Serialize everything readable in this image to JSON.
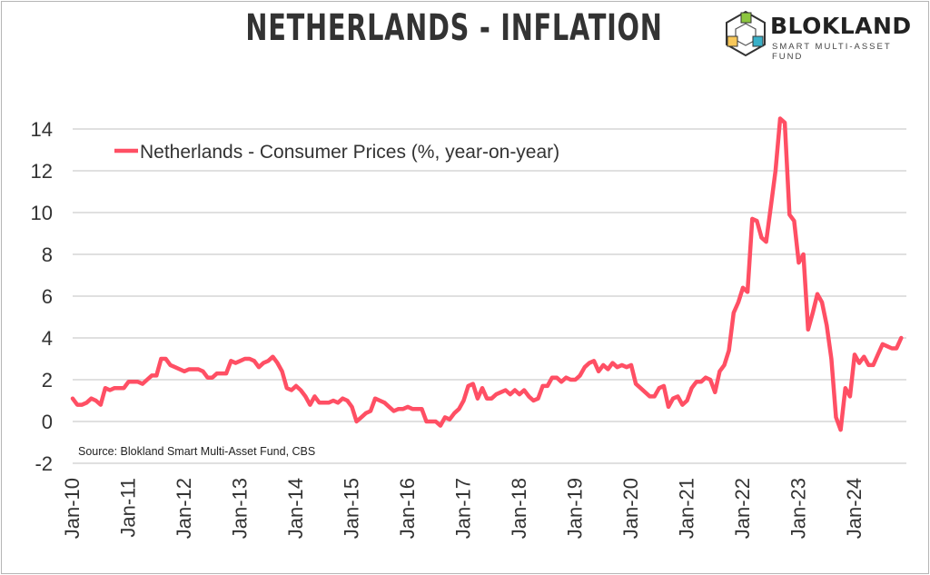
{
  "title": "NETHERLANDS - INFLATION",
  "logo": {
    "name": "BLOKLAND",
    "tagline": "SMART MULTI-ASSET FUND"
  },
  "chart_data": {
    "type": "line",
    "title": "NETHERLANDS - INFLATION",
    "xlabel": "",
    "ylabel": "",
    "ylim": [
      -2,
      14
    ],
    "yticks": [
      -2,
      0,
      2,
      4,
      6,
      8,
      10,
      12,
      14
    ],
    "xticks": [
      "Jan-10",
      "Jan-11",
      "Jan-12",
      "Jan-13",
      "Jan-14",
      "Jan-15",
      "Jan-16",
      "Jan-17",
      "Jan-18",
      "Jan-19",
      "Jan-20",
      "Jan-21",
      "Jan-22",
      "Jan-23",
      "Jan-24"
    ],
    "grid": "horizontal",
    "legend_placement": "top-left",
    "source": "Source: Blokland Smart Multi-Asset Fund, CBS",
    "x_start": "Jan-10",
    "x_frequency": "monthly",
    "series": [
      {
        "name": "Netherlands - Consumer Prices (%, year-on-year)",
        "color": "#ff4f64",
        "values": [
          1.1,
          0.8,
          0.8,
          0.9,
          1.1,
          1.0,
          0.8,
          1.6,
          1.5,
          1.6,
          1.6,
          1.6,
          1.9,
          1.9,
          1.9,
          1.8,
          2.0,
          2.2,
          2.2,
          3.0,
          3.0,
          2.7,
          2.6,
          2.5,
          2.4,
          2.5,
          2.5,
          2.5,
          2.4,
          2.1,
          2.1,
          2.3,
          2.3,
          2.3,
          2.9,
          2.8,
          2.9,
          3.0,
          3.0,
          2.9,
          2.6,
          2.8,
          2.9,
          3.1,
          2.8,
          2.4,
          1.6,
          1.5,
          1.7,
          1.5,
          1.2,
          0.8,
          1.2,
          0.9,
          0.9,
          0.9,
          1.0,
          0.9,
          1.1,
          1.0,
          0.7,
          0.0,
          0.2,
          0.4,
          0.5,
          1.1,
          1.0,
          0.9,
          0.7,
          0.5,
          0.6,
          0.6,
          0.7,
          0.6,
          0.6,
          0.6,
          0.0,
          0.0,
          0.0,
          -0.2,
          0.2,
          0.1,
          0.4,
          0.6,
          1.0,
          1.7,
          1.8,
          1.1,
          1.6,
          1.1,
          1.1,
          1.3,
          1.4,
          1.5,
          1.3,
          1.5,
          1.3,
          1.5,
          1.2,
          1.0,
          1.1,
          1.7,
          1.7,
          2.1,
          2.1,
          1.9,
          2.1,
          2.0,
          2.0,
          2.2,
          2.6,
          2.8,
          2.9,
          2.4,
          2.7,
          2.5,
          2.8,
          2.6,
          2.7,
          2.6,
          2.7,
          1.8,
          1.6,
          1.4,
          1.2,
          1.2,
          1.6,
          1.7,
          0.7,
          1.1,
          1.2,
          0.8,
          1.0,
          1.6,
          1.9,
          1.9,
          2.1,
          2.0,
          1.4,
          2.4,
          2.7,
          3.4,
          5.2,
          5.7,
          6.4,
          6.2,
          9.7,
          9.6,
          8.8,
          8.6,
          10.3,
          12.0,
          14.5,
          14.3,
          9.9,
          9.6,
          7.6,
          8.0,
          4.4,
          5.2,
          6.1,
          5.7,
          4.6,
          3.0,
          0.2,
          -0.4,
          1.6,
          1.2,
          3.2,
          2.8,
          3.1,
          2.7,
          2.7,
          3.2,
          3.7,
          3.6,
          3.5,
          3.5,
          4.0
        ]
      }
    ]
  }
}
